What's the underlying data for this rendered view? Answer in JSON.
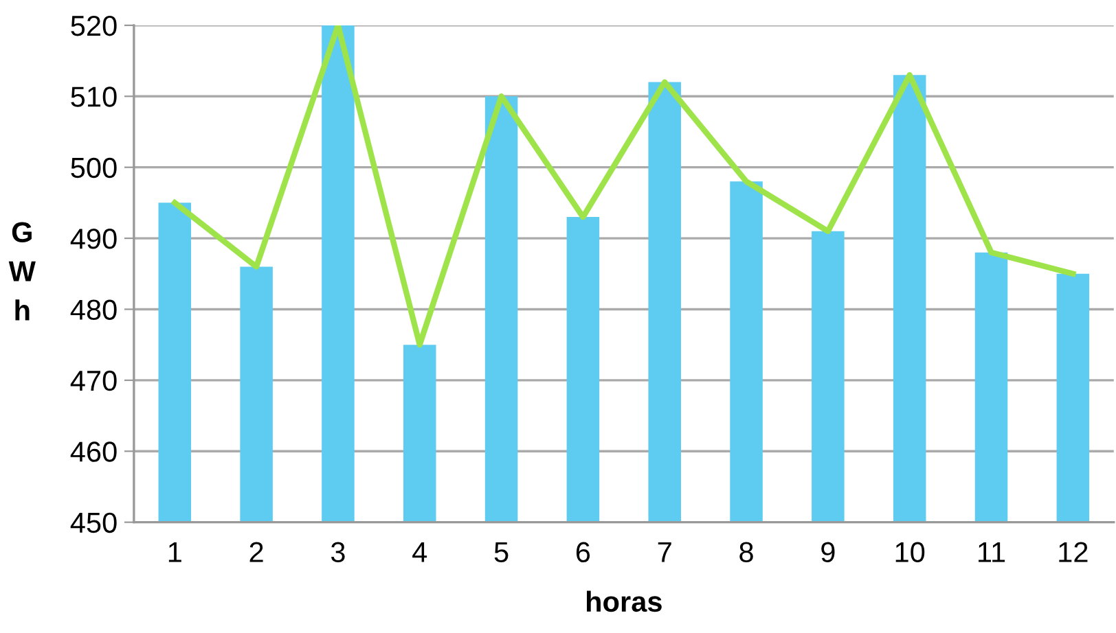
{
  "chart_data": {
    "type": "bar",
    "xlabel": "horas",
    "ylabel": "GWh",
    "categories": [
      "1",
      "2",
      "3",
      "4",
      "5",
      "6",
      "7",
      "8",
      "9",
      "10",
      "11",
      "12"
    ],
    "series": [
      {
        "color": "#5ecbf1",
        "values": [
          495,
          486,
          520,
          475,
          510,
          493,
          512,
          498,
          491,
          513,
          488,
          485
        ]
      },
      {
        "type": "line",
        "color": "#9ee34a",
        "values": [
          495,
          486,
          520,
          475,
          510,
          493,
          512,
          498,
          491,
          513,
          488,
          485
        ]
      }
    ],
    "ylim": [
      450,
      520
    ],
    "yticks": [
      450,
      460,
      470,
      480,
      490,
      500,
      510,
      520
    ],
    "grid": "y",
    "legend": false,
    "marker": "none",
    "line_style": "solid"
  }
}
